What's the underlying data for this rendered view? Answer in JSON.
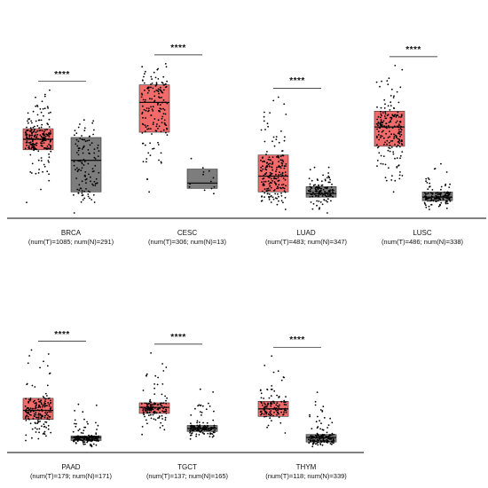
{
  "colors": {
    "tumor": "#f26b6b",
    "normal": "#7d7d7d",
    "point": "#000000",
    "axis": "#000000"
  },
  "chart_data": [
    {
      "type": "box",
      "cancer": "BRCA",
      "counts": "(num(T)=1085; num(N)=291)",
      "significance": "****",
      "series": [
        {
          "group": "T",
          "min": 0.6,
          "q1": 3.6,
          "median": 4.2,
          "q3": 4.8,
          "max": 7.0,
          "n_shown": 220
        },
        {
          "group": "N",
          "min": 0.0,
          "q1": 1.2,
          "median": 3.0,
          "q3": 4.3,
          "max": 5.3,
          "n_shown": 120
        }
      ]
    },
    {
      "type": "box",
      "cancer": "CESC",
      "counts": "(num(T)=306; num(N)=13)",
      "significance": "****",
      "series": [
        {
          "group": "T",
          "min": 1.2,
          "q1": 4.6,
          "median": 6.3,
          "q3": 7.3,
          "max": 8.5,
          "n_shown": 160
        },
        {
          "group": "N",
          "min": 1.1,
          "q1": 1.4,
          "median": 1.7,
          "q3": 2.5,
          "max": 3.1,
          "n_shown": 13
        }
      ]
    },
    {
      "type": "box",
      "cancer": "LUAD",
      "counts": "(num(T)=483; num(N)=347)",
      "significance": "****",
      "series": [
        {
          "group": "T",
          "min": 0.2,
          "q1": 1.2,
          "median": 2.1,
          "q3": 3.3,
          "max": 6.6,
          "n_shown": 200
        },
        {
          "group": "N",
          "min": 0.0,
          "q1": 0.9,
          "median": 1.1,
          "q3": 1.5,
          "max": 2.6,
          "n_shown": 140
        }
      ]
    },
    {
      "type": "box",
      "cancer": "LUSC",
      "counts": "(num(T)=486; num(N)=338)",
      "significance": "****",
      "series": [
        {
          "group": "T",
          "min": 1.2,
          "q1": 3.8,
          "median": 4.9,
          "q3": 5.8,
          "max": 8.4,
          "n_shown": 200
        },
        {
          "group": "N",
          "min": 0.2,
          "q1": 0.7,
          "median": 0.9,
          "q3": 1.2,
          "max": 2.8,
          "n_shown": 140
        }
      ]
    },
    {
      "type": "box",
      "cancer": "PAAD",
      "counts": "(num(T)=179; num(N)=171)",
      "significance": "****",
      "series": [
        {
          "group": "T",
          "min": 0.5,
          "q1": 1.9,
          "median": 2.5,
          "q3": 3.3,
          "max": 6.5,
          "n_shown": 179
        },
        {
          "group": "N",
          "min": 0.1,
          "q1": 0.5,
          "median": 0.7,
          "q3": 0.8,
          "max": 2.9,
          "n_shown": 150
        }
      ]
    },
    {
      "type": "box",
      "cancer": "TGCT",
      "counts": "(num(T)=137; num(N)=165)",
      "significance": "****",
      "series": [
        {
          "group": "T",
          "min": 0.9,
          "q1": 2.3,
          "median": 2.7,
          "q3": 3.0,
          "max": 6.3,
          "n_shown": 137
        },
        {
          "group": "N",
          "min": 0.6,
          "q1": 1.1,
          "median": 1.3,
          "q3": 1.5,
          "max": 3.9,
          "n_shown": 150
        }
      ]
    },
    {
      "type": "box",
      "cancer": "THYM",
      "counts": "(num(T)=118; num(N)=339)",
      "significance": "****",
      "series": [
        {
          "group": "T",
          "min": 1.0,
          "q1": 2.1,
          "median": 2.6,
          "q3": 3.1,
          "max": 6.1,
          "n_shown": 118
        },
        {
          "group": "N",
          "min": 0.1,
          "q1": 0.4,
          "median": 0.7,
          "q3": 0.9,
          "max": 3.7,
          "n_shown": 160
        }
      ]
    }
  ]
}
